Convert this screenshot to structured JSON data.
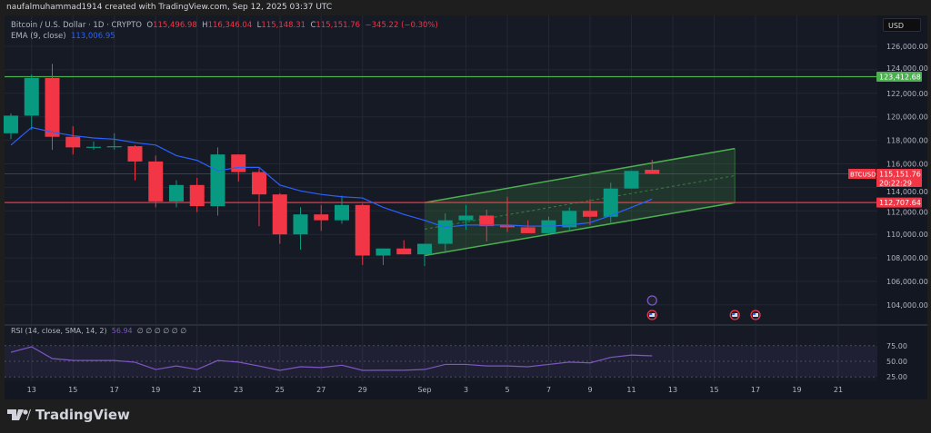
{
  "header": {
    "attribution": "naufalmuhammad1914 created with TradingView.com, Sep 12, 2025 03:37 UTC"
  },
  "legend": {
    "symbol": "Bitcoin / U.S. Dollar · 1D · CRYPTO",
    "open_label": "O",
    "open": "115,496.98",
    "high_label": "H",
    "high": "116,346.04",
    "low_label": "L",
    "low": "115,148.31",
    "close_label": "C",
    "close": "115,151.76",
    "change": "−345.22 (−0.30%)",
    "ema_label": "EMA (9, close)",
    "ema_value": "113,006.95"
  },
  "rsi_legend": {
    "label": "RSI (14, close, SMA, 14, 2)",
    "value": "56.94",
    "extra": "∅ ∅ ∅ ∅ ∅ ∅"
  },
  "currency_button": "USD",
  "footer": {
    "brand": "TradingView"
  },
  "colors": {
    "up": "#089981",
    "down": "#f23645",
    "ema": "#2962ff",
    "rsi": "#7e57c2",
    "resistance": "#4caf50",
    "support": "#f23645",
    "channel": "#4caf50",
    "background": "#161a25"
  },
  "chart_data": {
    "type": "candlestick",
    "timeframe": "1D",
    "candles": [
      {
        "date": "Aug 12",
        "o": 118600,
        "h": 120300,
        "l": 118100,
        "c": 120100
      },
      {
        "date": "Aug 13",
        "o": 120100,
        "h": 123600,
        "l": 118900,
        "c": 123300
      },
      {
        "date": "Aug 14",
        "o": 123300,
        "h": 124500,
        "l": 117200,
        "c": 118300
      },
      {
        "date": "Aug 15",
        "o": 118300,
        "h": 119200,
        "l": 116800,
        "c": 117400
      },
      {
        "date": "Aug 16",
        "o": 117400,
        "h": 117900,
        "l": 117200,
        "c": 117450
      },
      {
        "date": "Aug 17",
        "o": 117450,
        "h": 118600,
        "l": 117200,
        "c": 117500
      },
      {
        "date": "Aug 18",
        "o": 117500,
        "h": 117600,
        "l": 114600,
        "c": 116200
      },
      {
        "date": "Aug 19",
        "o": 116200,
        "h": 116700,
        "l": 112300,
        "c": 112800
      },
      {
        "date": "Aug 20",
        "o": 112800,
        "h": 114600,
        "l": 112300,
        "c": 114200
      },
      {
        "date": "Aug 21",
        "o": 114200,
        "h": 114800,
        "l": 111900,
        "c": 112400
      },
      {
        "date": "Aug 22",
        "o": 112400,
        "h": 117400,
        "l": 111600,
        "c": 116800
      },
      {
        "date": "Aug 23",
        "o": 116800,
        "h": 116800,
        "l": 114500,
        "c": 115300
      },
      {
        "date": "Aug 24",
        "o": 115300,
        "h": 115600,
        "l": 110700,
        "c": 113400
      },
      {
        "date": "Aug 25",
        "o": 113400,
        "h": 113500,
        "l": 109200,
        "c": 110000
      },
      {
        "date": "Aug 26",
        "o": 110000,
        "h": 112300,
        "l": 108700,
        "c": 111700
      },
      {
        "date": "Aug 27",
        "o": 111700,
        "h": 112500,
        "l": 110300,
        "c": 111200
      },
      {
        "date": "Aug 28",
        "o": 111200,
        "h": 113300,
        "l": 110900,
        "c": 112500
      },
      {
        "date": "Aug 29",
        "o": 112500,
        "h": 112600,
        "l": 107400,
        "c": 108200
      },
      {
        "date": "Aug 30",
        "o": 108200,
        "h": 108800,
        "l": 107400,
        "c": 108800
      },
      {
        "date": "Aug 31",
        "o": 108800,
        "h": 109500,
        "l": 108300,
        "c": 108300
      },
      {
        "date": "Sep 1",
        "o": 108300,
        "h": 109200,
        "l": 107300,
        "c": 109200
      },
      {
        "date": "Sep 2",
        "o": 109200,
        "h": 111800,
        "l": 108400,
        "c": 111200
      },
      {
        "date": "Sep 3",
        "o": 111200,
        "h": 112500,
        "l": 110400,
        "c": 111600
      },
      {
        "date": "Sep 4",
        "o": 111600,
        "h": 112100,
        "l": 109400,
        "c": 110700
      },
      {
        "date": "Sep 5",
        "o": 110800,
        "h": 113200,
        "l": 110200,
        "c": 110600
      },
      {
        "date": "Sep 6",
        "o": 110600,
        "h": 111200,
        "l": 110100,
        "c": 110100
      },
      {
        "date": "Sep 7",
        "o": 110100,
        "h": 111500,
        "l": 110100,
        "c": 111200
      },
      {
        "date": "Sep 8",
        "o": 110600,
        "h": 112300,
        "l": 110400,
        "c": 112000
      },
      {
        "date": "Sep 9",
        "o": 112000,
        "h": 113000,
        "l": 110800,
        "c": 111500
      },
      {
        "date": "Sep 10",
        "o": 111500,
        "h": 114400,
        "l": 110900,
        "c": 113900
      },
      {
        "date": "Sep 11",
        "o": 113900,
        "h": 115400,
        "l": 113900,
        "c": 115400
      },
      {
        "date": "Sep 12",
        "o": 115496.98,
        "h": 116346.04,
        "l": 115148.31,
        "c": 115151.76
      }
    ],
    "ema": [
      117600,
      119100,
      118700,
      118400,
      118200,
      118100,
      117800,
      117600,
      116700,
      116300,
      115400,
      115700,
      115700,
      114200,
      113700,
      113400,
      113200,
      113100,
      112300,
      111700,
      111200,
      110600,
      110800,
      110800,
      110800,
      110700,
      110700,
      110800,
      111000,
      111600,
      112300,
      113006.95
    ],
    "rsi": [
      61.6,
      68.6,
      53.5,
      51.2,
      51,
      51,
      48.8,
      39.5,
      44,
      39.5,
      51,
      49,
      44,
      38.4,
      43,
      42,
      45,
      38.4,
      38.5,
      38.5,
      39.5,
      46,
      46,
      44,
      44,
      43,
      46,
      49,
      48,
      55,
      58,
      56.94
    ],
    "rsi_levels": {
      "upper": 70,
      "middle": 50,
      "lower": 30
    },
    "horizontal_lines": [
      {
        "price": 123412.68,
        "label": "123,412.68",
        "color": "#4caf50"
      },
      {
        "price": 112707.64,
        "label": "112,707.64",
        "color": "#f23645"
      }
    ],
    "current_price": {
      "symbol": "BTCUSD",
      "label": "115,151.76",
      "countdown": "20:22:29"
    },
    "channel": {
      "start_date": "Sep 1",
      "end_date": "Sep 16",
      "lower": [
        108200,
        112700
      ],
      "upper": [
        112700,
        117300
      ]
    },
    "price_ticks": [
      "126,000.00",
      "124,000.00",
      "122,000.00",
      "120,000.00",
      "118,000.00",
      "116,000.00",
      "114,000.00",
      "112,000.00",
      "110,000.00",
      "108,000.00",
      "106,000.00",
      "104,000.00"
    ],
    "price_tick_values": [
      126000,
      124000,
      122000,
      120000,
      118000,
      116000,
      114000,
      112000,
      110000,
      108000,
      106000,
      104000
    ],
    "rsi_ticks": [
      "75.00",
      "50.00",
      "25.00"
    ],
    "x_ticks": [
      "13",
      "15",
      "17",
      "19",
      "21",
      "23",
      "25",
      "27",
      "29",
      "Sep",
      "3",
      "5",
      "7",
      "9",
      "11",
      "13",
      "15",
      "17",
      "19",
      "21"
    ],
    "x_tick_day_offsets": [
      1,
      3,
      5,
      7,
      9,
      11,
      13,
      15,
      17,
      20,
      22,
      24,
      26,
      28,
      30,
      32,
      34,
      36,
      38,
      40
    ],
    "events": [
      {
        "date": "Sep 12",
        "kind": "flash"
      },
      {
        "date": "Sep 12",
        "kind": "us-flag"
      },
      {
        "date": "Sep 16",
        "kind": "us-flag"
      },
      {
        "date": "Sep 17",
        "kind": "us-flag"
      }
    ]
  }
}
